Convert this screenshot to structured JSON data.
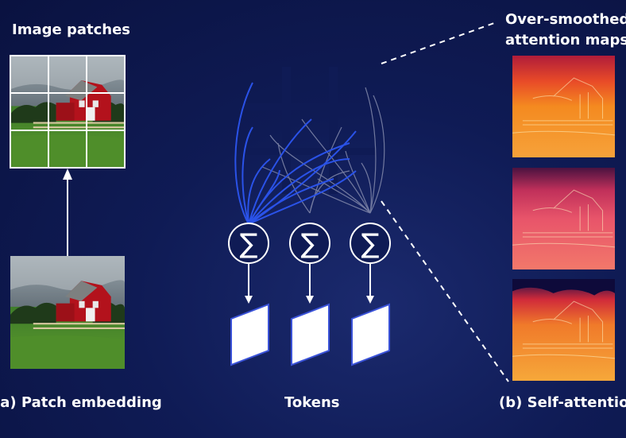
{
  "title_patches": "Image patches",
  "title_maps_line1": "Over-smoothed",
  "title_maps_line2": "attention maps",
  "caption_a": "(a) Patch embedding",
  "caption_tokens": "Tokens",
  "caption_b": "(b) Self-attention",
  "sigma_symbol": "∑",
  "colors": {
    "background": "#0f1b55",
    "attention_curve": "#2a52e8",
    "attention_curve_faint": "#8a90b0",
    "token_fill": "#ffffff",
    "token_edge": "#3a52d8"
  }
}
